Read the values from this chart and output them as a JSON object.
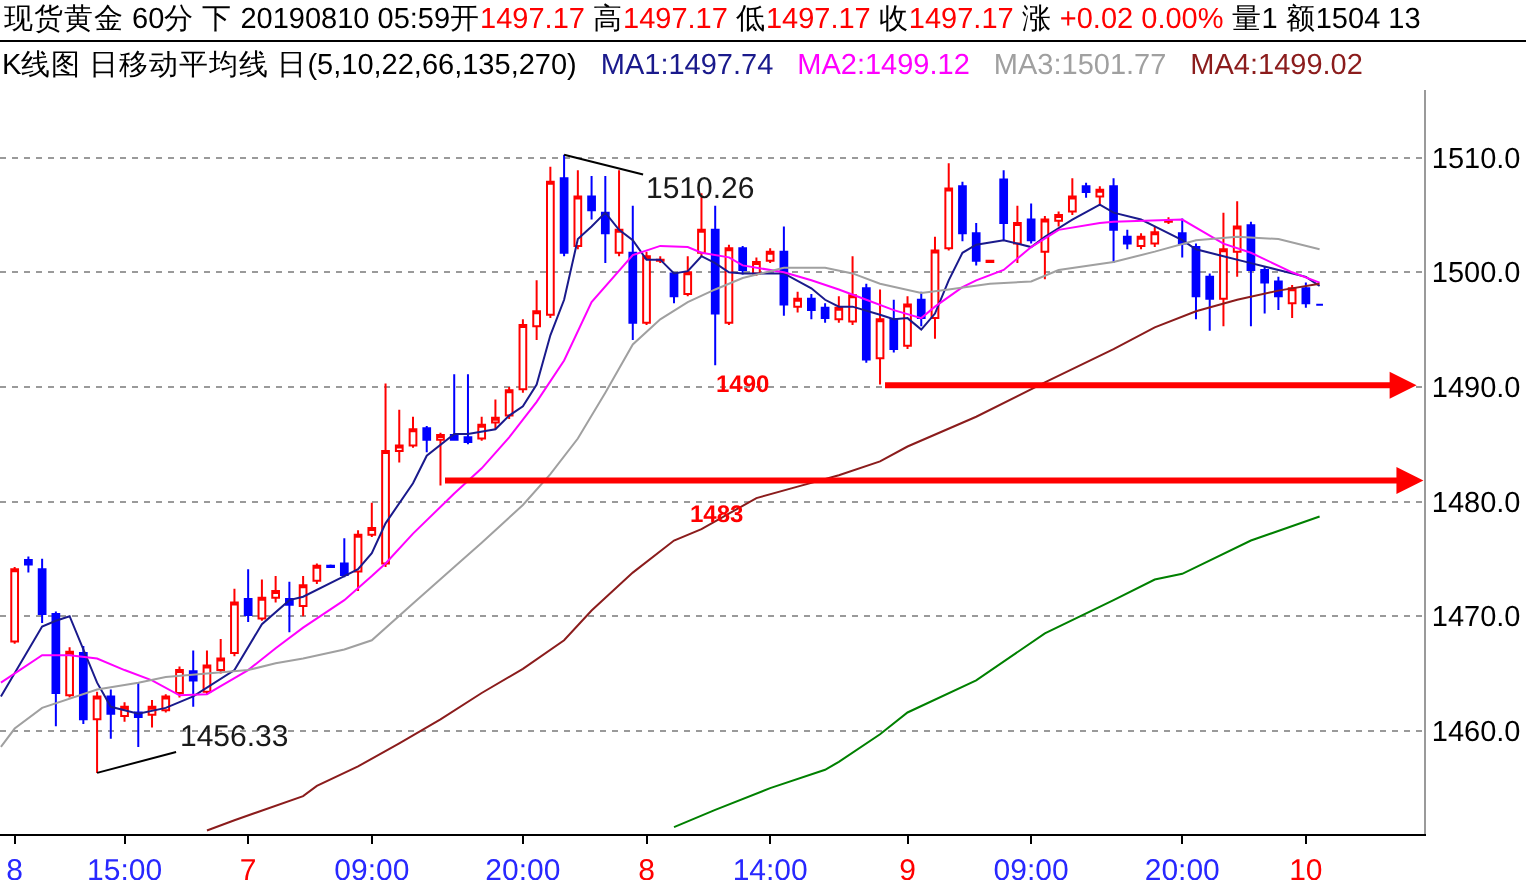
{
  "chart_data": {
    "type": "candlestick",
    "title": "现货黄金 60分 下 20190810 05:59开1497.17 高1497.17 低1497.17 收1497.17 涨 +0.02 0.00% 量1 额1504 13",
    "subtitle": "K线图 日移动平均线 日(5,10,22,66,135,270)",
    "x": [
      "2019-08-06T07:00",
      "2019-08-06T08:00",
      "2019-08-06T09:00",
      "2019-08-06T10:00",
      "2019-08-06T11:00",
      "2019-08-06T12:00",
      "2019-08-06T13:00",
      "2019-08-06T14:00",
      "2019-08-06T15:00",
      "2019-08-06T16:00",
      "2019-08-06T17:00",
      "2019-08-06T18:00",
      "2019-08-06T19:00",
      "2019-08-06T20:00",
      "2019-08-06T21:00",
      "2019-08-06T22:00",
      "2019-08-06T23:00",
      "2019-08-07T00:00",
      "2019-08-07T01:00",
      "2019-08-07T02:00",
      "2019-08-07T03:00",
      "2019-08-07T04:00",
      "2019-08-07T05:00",
      "2019-08-07T06:00",
      "2019-08-07T07:00",
      "2019-08-07T08:00",
      "2019-08-07T09:00",
      "2019-08-07T10:00",
      "2019-08-07T11:00",
      "2019-08-07T12:00",
      "2019-08-07T13:00",
      "2019-08-07T14:00",
      "2019-08-07T15:00",
      "2019-08-07T16:00",
      "2019-08-07T17:00",
      "2019-08-07T18:00",
      "2019-08-07T19:00",
      "2019-08-07T20:00",
      "2019-08-07T21:00",
      "2019-08-07T22:00",
      "2019-08-07T23:00",
      "2019-08-08T00:00",
      "2019-08-08T01:00",
      "2019-08-08T02:00",
      "2019-08-08T03:00",
      "2019-08-08T04:00",
      "2019-08-08T05:00",
      "2019-08-08T06:00",
      "2019-08-08T07:00",
      "2019-08-08T08:00",
      "2019-08-08T09:00",
      "2019-08-08T10:00",
      "2019-08-08T11:00",
      "2019-08-08T12:00",
      "2019-08-08T13:00",
      "2019-08-08T14:00",
      "2019-08-08T15:00",
      "2019-08-08T16:00",
      "2019-08-08T17:00",
      "2019-08-08T18:00",
      "2019-08-08T19:00",
      "2019-08-08T20:00",
      "2019-08-08T21:00",
      "2019-08-08T22:00",
      "2019-08-08T23:00",
      "2019-08-09T00:00",
      "2019-08-09T01:00",
      "2019-08-09T02:00",
      "2019-08-09T03:00",
      "2019-08-09T04:00",
      "2019-08-09T05:00",
      "2019-08-09T06:00",
      "2019-08-09T07:00",
      "2019-08-09T08:00",
      "2019-08-09T09:00",
      "2019-08-09T10:00",
      "2019-08-09T11:00",
      "2019-08-09T12:00",
      "2019-08-09T13:00",
      "2019-08-09T14:00",
      "2019-08-09T15:00",
      "2019-08-09T16:00",
      "2019-08-09T17:00",
      "2019-08-09T18:00",
      "2019-08-09T19:00",
      "2019-08-09T20:00",
      "2019-08-09T21:00",
      "2019-08-09T22:00",
      "2019-08-09T23:00",
      "2019-08-10T00:00",
      "2019-08-10T01:00",
      "2019-08-10T02:00",
      "2019-08-10T03:00",
      "2019-08-10T04:00",
      "2019-08-10T05:00",
      "2019-08-10T06:00"
    ],
    "ohlc": [
      [
        1467.8,
        1474.3,
        1467.6,
        1474.1
      ],
      [
        1474.9,
        1475.2,
        1473.8,
        1474.5
      ],
      [
        1474.1,
        1475.0,
        1469.4,
        1470.2
      ],
      [
        1470.2,
        1470.4,
        1460.4,
        1463.3
      ],
      [
        1463.1,
        1467.3,
        1462.9,
        1466.9
      ],
      [
        1466.8,
        1467.4,
        1460.6,
        1461.0
      ],
      [
        1461.0,
        1463.4,
        1456.33,
        1463.0
      ],
      [
        1463.0,
        1463.6,
        1459.3,
        1461.5
      ],
      [
        1461.3,
        1462.5,
        1460.8,
        1462.1
      ],
      [
        1461.6,
        1464.2,
        1458.6,
        1461.2
      ],
      [
        1461.4,
        1462.7,
        1460.3,
        1462.1
      ],
      [
        1461.8,
        1463.2,
        1461.6,
        1463.0
      ],
      [
        1463.3,
        1465.6,
        1462.9,
        1465.3
      ],
      [
        1465.2,
        1467.0,
        1462.1,
        1464.4
      ],
      [
        1463.4,
        1467.0,
        1463.2,
        1465.7
      ],
      [
        1465.3,
        1468.0,
        1465.0,
        1466.3
      ],
      [
        1466.8,
        1472.4,
        1466.5,
        1471.2
      ],
      [
        1471.5,
        1474.1,
        1469.5,
        1470.1
      ],
      [
        1469.8,
        1473.2,
        1469.6,
        1471.6
      ],
      [
        1471.6,
        1473.5,
        1471.2,
        1472.2
      ],
      [
        1471.5,
        1473.0,
        1468.6,
        1471.0
      ],
      [
        1470.9,
        1473.5,
        1470.0,
        1472.7
      ],
      [
        1473.1,
        1474.6,
        1472.8,
        1474.4
      ],
      [
        1474.4,
        1474.5,
        1474.2,
        1474.3
      ],
      [
        1474.6,
        1476.8,
        1473.4,
        1473.6
      ],
      [
        1473.9,
        1477.5,
        1472.2,
        1477.1
      ],
      [
        1477.1,
        1479.9,
        1476.9,
        1477.7
      ],
      [
        1474.6,
        1490.3,
        1474.3,
        1484.4
      ],
      [
        1484.4,
        1488.0,
        1483.4,
        1484.9
      ],
      [
        1484.9,
        1487.4,
        1484.7,
        1486.3
      ],
      [
        1486.4,
        1486.6,
        1484.3,
        1485.4
      ],
      [
        1485.4,
        1486.0,
        1481.4,
        1485.8
      ],
      [
        1485.8,
        1491.1,
        1485.3,
        1485.4
      ],
      [
        1485.6,
        1491.1,
        1485.0,
        1485.2
      ],
      [
        1485.5,
        1487.4,
        1485.3,
        1486.7
      ],
      [
        1486.9,
        1488.9,
        1486.3,
        1487.3
      ],
      [
        1487.5,
        1490.0,
        1487.2,
        1489.7
      ],
      [
        1489.8,
        1495.9,
        1489.5,
        1495.4
      ],
      [
        1495.3,
        1499.3,
        1494.1,
        1496.6
      ],
      [
        1496.3,
        1509.2,
        1496.0,
        1507.9
      ],
      [
        1508.2,
        1510.26,
        1501.4,
        1501.7
      ],
      [
        1502.3,
        1508.9,
        1502.0,
        1506.6
      ],
      [
        1506.6,
        1508.4,
        1504.6,
        1505.4
      ],
      [
        1505.2,
        1508.4,
        1500.8,
        1503.4
      ],
      [
        1501.7,
        1508.9,
        1501.4,
        1503.7
      ],
      [
        1501.7,
        1505.8,
        1494.1,
        1495.6
      ],
      [
        1495.6,
        1501.8,
        1495.4,
        1501.4
      ],
      [
        1501.0,
        1501.4,
        1500.8,
        1501.1
      ],
      [
        1499.9,
        1500.0,
        1497.3,
        1497.9
      ],
      [
        1498.1,
        1501.4,
        1497.9,
        1500.0
      ],
      [
        1501.7,
        1506.9,
        1501.4,
        1503.7
      ],
      [
        1503.7,
        1505.8,
        1491.9,
        1496.4
      ],
      [
        1495.6,
        1502.4,
        1495.4,
        1502.1
      ],
      [
        1502.1,
        1502.3,
        1499.8,
        1500.2
      ],
      [
        1499.9,
        1501.3,
        1499.7,
        1500.9
      ],
      [
        1501.0,
        1502.1,
        1500.8,
        1501.8
      ],
      [
        1501.8,
        1504.0,
        1496.2,
        1497.2
      ],
      [
        1497.0,
        1498.3,
        1496.5,
        1497.7
      ],
      [
        1497.7,
        1498.1,
        1495.9,
        1496.7
      ],
      [
        1496.9,
        1497.3,
        1495.6,
        1496.0
      ],
      [
        1495.9,
        1497.9,
        1495.6,
        1496.9
      ],
      [
        1495.7,
        1501.4,
        1495.4,
        1498.0
      ],
      [
        1498.6,
        1499.0,
        1492.1,
        1492.4
      ],
      [
        1492.5,
        1498.5,
        1490.2,
        1495.9
      ],
      [
        1495.9,
        1497.6,
        1493.0,
        1493.3
      ],
      [
        1493.6,
        1497.9,
        1493.3,
        1497.2
      ],
      [
        1497.6,
        1498.3,
        1495.3,
        1496.0
      ],
      [
        1496.0,
        1503.1,
        1494.2,
        1501.9
      ],
      [
        1502.1,
        1509.5,
        1501.9,
        1507.3
      ],
      [
        1507.5,
        1507.9,
        1502.7,
        1503.4
      ],
      [
        1503.4,
        1504.3,
        1500.6,
        1501.0
      ],
      [
        1500.9,
        1501.1,
        1500.8,
        1501.0
      ],
      [
        1508.1,
        1508.9,
        1502.8,
        1504.3
      ],
      [
        1502.5,
        1505.8,
        1500.8,
        1504.3
      ],
      [
        1504.6,
        1506.0,
        1502.5,
        1502.8
      ],
      [
        1501.8,
        1504.9,
        1499.4,
        1504.6
      ],
      [
        1504.5,
        1505.3,
        1504.0,
        1505.0
      ],
      [
        1505.3,
        1508.2,
        1505.0,
        1506.6
      ],
      [
        1507.5,
        1507.8,
        1506.5,
        1507.0
      ],
      [
        1506.6,
        1507.5,
        1505.8,
        1507.2
      ],
      [
        1507.5,
        1508.2,
        1500.8,
        1503.7
      ],
      [
        1503.1,
        1503.7,
        1502.0,
        1502.5
      ],
      [
        1502.3,
        1503.4,
        1502.0,
        1503.1
      ],
      [
        1502.5,
        1504.0,
        1502.2,
        1503.5
      ],
      [
        1504.4,
        1504.8,
        1504.2,
        1504.5
      ],
      [
        1503.4,
        1504.7,
        1501.3,
        1502.5
      ],
      [
        1502.2,
        1502.5,
        1495.9,
        1497.9
      ],
      [
        1499.6,
        1499.9,
        1494.9,
        1497.7
      ],
      [
        1497.7,
        1505.2,
        1495.3,
        1502.0
      ],
      [
        1501.8,
        1506.2,
        1499.6,
        1504.0
      ],
      [
        1504.1,
        1504.4,
        1495.3,
        1500.2
      ],
      [
        1500.2,
        1500.5,
        1496.4,
        1499.1
      ],
      [
        1499.2,
        1499.6,
        1496.7,
        1497.9
      ],
      [
        1497.3,
        1498.9,
        1496.0,
        1498.6
      ],
      [
        1498.6,
        1499.1,
        1496.9,
        1497.3
      ],
      [
        1497.17,
        1497.17,
        1497.17,
        1497.17
      ]
    ],
    "colors": [
      "#ff0000",
      "#0000ff",
      "#0000ff",
      "#0000ff",
      "#ff0000",
      "#0000ff",
      "#ff0000",
      "#0000ff",
      "#ff0000",
      "#0000ff",
      "#ff0000",
      "#ff0000",
      "#ff0000",
      "#0000ff",
      "#ff0000",
      "#ff0000",
      "#ff0000",
      "#0000ff",
      "#ff0000",
      "#ff0000",
      "#0000ff",
      "#ff0000",
      "#ff0000",
      "#0000ff",
      "#0000ff",
      "#ff0000",
      "#ff0000",
      "#ff0000",
      "#ff0000",
      "#ff0000",
      "#0000ff",
      "#ff0000",
      "#0000ff",
      "#0000ff",
      "#ff0000",
      "#ff0000",
      "#ff0000",
      "#ff0000",
      "#ff0000",
      "#ff0000",
      "#0000ff",
      "#ff0000",
      "#0000ff",
      "#0000ff",
      "#ff0000",
      "#0000ff",
      "#ff0000",
      "#ff0000",
      "#0000ff",
      "#ff0000",
      "#ff0000",
      "#0000ff",
      "#ff0000",
      "#0000ff",
      "#ff0000",
      "#ff0000",
      "#0000ff",
      "#ff0000",
      "#0000ff",
      "#0000ff",
      "#ff0000",
      "#ff0000",
      "#0000ff",
      "#ff0000",
      "#0000ff",
      "#ff0000",
      "#0000ff",
      "#ff0000",
      "#ff0000",
      "#0000ff",
      "#0000ff",
      "#ff0000",
      "#0000ff",
      "#ff0000",
      "#0000ff",
      "#ff0000",
      "#ff0000",
      "#ff0000",
      "#0000ff",
      "#ff0000",
      "#0000ff",
      "#0000ff",
      "#ff0000",
      "#ff0000",
      "#ff0000",
      "#0000ff",
      "#0000ff",
      "#0000ff",
      "#ff0000",
      "#ff0000",
      "#0000ff",
      "#0000ff",
      "#0000ff",
      "#ff0000",
      "#0000ff",
      "#0000ff"
    ],
    "series": [
      {
        "type": "line",
        "name": "MA1:1497.74",
        "color": "#1a1a8c",
        "x": [
          "2019-08-06T06:00",
          "2019-08-06T09:00",
          "2019-08-06T10:00",
          "2019-08-06T11:00",
          "2019-08-06T13:00",
          "2019-08-06T14:00",
          "2019-08-06T16:00",
          "2019-08-06T18:00",
          "2019-08-06T20:00",
          "2019-08-06T23:00",
          "2019-08-07T01:00",
          "2019-08-07T03:00",
          "2019-08-07T04:00",
          "2019-08-07T07:00",
          "2019-08-07T08:00",
          "2019-08-07T09:00",
          "2019-08-07T10:00",
          "2019-08-07T12:00",
          "2019-08-07T13:00",
          "2019-08-07T15:00",
          "2019-08-07T16:00",
          "2019-08-07T18:00",
          "2019-08-07T19:00",
          "2019-08-07T20:00",
          "2019-08-07T21:00",
          "2019-08-07T22:00",
          "2019-08-07T23:00",
          "2019-08-08T00:00",
          "2019-08-08T01:00",
          "2019-08-08T02:00",
          "2019-08-08T03:00",
          "2019-08-08T04:00",
          "2019-08-08T05:00",
          "2019-08-08T06:00",
          "2019-08-08T07:00",
          "2019-08-08T08:00",
          "2019-08-08T09:00",
          "2019-08-08T10:00",
          "2019-08-08T11:00",
          "2019-08-08T12:00",
          "2019-08-08T15:00",
          "2019-08-08T17:00",
          "2019-08-08T18:00",
          "2019-08-08T19:00",
          "2019-08-08T20:00",
          "2019-08-08T22:00",
          "2019-08-08T23:00",
          "2019-08-09T00:00",
          "2019-08-09T01:00",
          "2019-08-09T02:00",
          "2019-08-09T03:00",
          "2019-08-09T04:00",
          "2019-08-09T05:00",
          "2019-08-09T07:00",
          "2019-08-09T09:00",
          "2019-08-09T10:00",
          "2019-08-09T12:00",
          "2019-08-09T14:00",
          "2019-08-09T15:00",
          "2019-08-09T17:00",
          "2019-08-09T18:00",
          "2019-08-09T20:00",
          "2019-08-09T21:00",
          "2019-08-09T23:00",
          "2019-08-10T01:00",
          "2019-08-10T03:00",
          "2019-08-10T05:00",
          "2019-08-10T06:00"
        ],
        "values": [
          1463.0,
          1469.1,
          1469.6,
          1470.0,
          1464.2,
          1462.1,
          1461.5,
          1462.0,
          1463.0,
          1465.3,
          1469.3,
          1471.4,
          1471.7,
          1473.5,
          1474.1,
          1475.5,
          1478.1,
          1481.6,
          1484.0,
          1485.9,
          1485.9,
          1486.3,
          1487.5,
          1488.3,
          1490.2,
          1494.5,
          1497.6,
          1502.9,
          1504.0,
          1505.2,
          1503.7,
          1502.8,
          1501.1,
          1501.1,
          1499.9,
          1500.1,
          1501.4,
          1500.8,
          1500.0,
          1499.9,
          1499.9,
          1498.6,
          1497.6,
          1497.0,
          1497.0,
          1496.3,
          1495.9,
          1496.0,
          1495.0,
          1496.4,
          1499.3,
          1501.7,
          1502.4,
          1502.8,
          1502.2,
          1503.1,
          1504.6,
          1505.9,
          1505.2,
          1504.6,
          1504.0,
          1502.8,
          1502.0,
          1501.4,
          1500.8,
          1500.2,
          1499.6,
          1498.8
        ]
      },
      {
        "type": "line",
        "name": "MA2:1499.12",
        "color": "#ff00ff",
        "x": [
          "2019-08-06T06:00",
          "2019-08-06T09:00",
          "2019-08-06T11:00",
          "2019-08-06T13:00",
          "2019-08-06T15:00",
          "2019-08-06T17:00",
          "2019-08-06T19:00",
          "2019-08-06T21:00",
          "2019-08-06T22:00",
          "2019-08-07T00:00",
          "2019-08-07T02:00",
          "2019-08-07T04:00",
          "2019-08-07T07:00",
          "2019-08-07T09:00",
          "2019-08-07T10:00",
          "2019-08-07T12:00",
          "2019-08-07T15:00",
          "2019-08-07T17:00",
          "2019-08-07T19:00",
          "2019-08-07T21:00",
          "2019-08-07T23:00",
          "2019-08-08T01:00",
          "2019-08-08T04:00",
          "2019-08-08T06:00",
          "2019-08-08T08:00",
          "2019-08-08T09:00",
          "2019-08-08T11:00",
          "2019-08-08T12:00",
          "2019-08-08T15:00",
          "2019-08-08T17:00",
          "2019-08-08T19:00",
          "2019-08-08T21:00",
          "2019-08-08T23:00",
          "2019-08-09T01:00",
          "2019-08-09T02:00",
          "2019-08-09T04:00",
          "2019-08-09T05:00",
          "2019-08-09T07:00",
          "2019-08-09T09:00",
          "2019-08-09T11:00",
          "2019-08-09T14:00",
          "2019-08-09T15:00",
          "2019-08-09T20:00",
          "2019-08-09T23:00",
          "2019-08-10T01:00",
          "2019-08-10T04:00",
          "2019-08-10T06:00"
        ],
        "values": [
          1464.2,
          1466.6,
          1466.6,
          1466.3,
          1465.3,
          1464.4,
          1463.1,
          1463.2,
          1463.9,
          1465.3,
          1467.2,
          1469.0,
          1471.4,
          1473.5,
          1474.6,
          1477.2,
          1480.7,
          1482.9,
          1485.6,
          1488.7,
          1492.3,
          1497.4,
          1501.5,
          1502.3,
          1502.2,
          1501.7,
          1501.3,
          1500.6,
          1500.0,
          1499.3,
          1498.5,
          1497.6,
          1496.7,
          1496.0,
          1497.0,
          1498.7,
          1499.3,
          1500.2,
          1502.2,
          1503.7,
          1504.3,
          1504.4,
          1504.6,
          1502.5,
          1501.7,
          1500.0,
          1499.1
        ]
      },
      {
        "type": "line",
        "name": "MA3:1501.77",
        "color": "#a0a0a0",
        "x": [
          "2019-08-06T06:00",
          "2019-08-06T07:00",
          "2019-08-06T09:00",
          "2019-08-06T13:00",
          "2019-08-06T16:00",
          "2019-08-06T18:00",
          "2019-08-06T21:00",
          "2019-08-07T00:00",
          "2019-08-07T02:00",
          "2019-08-07T04:00",
          "2019-08-07T07:00",
          "2019-08-07T09:00",
          "2019-08-07T12:00",
          "2019-08-07T15:00",
          "2019-08-07T17:00",
          "2019-08-07T20:00",
          "2019-08-07T22:00",
          "2019-08-08T00:00",
          "2019-08-08T02:00",
          "2019-08-08T04:00",
          "2019-08-08T06:00",
          "2019-08-08T08:00",
          "2019-08-08T10:00",
          "2019-08-08T12:00",
          "2019-08-08T15:00",
          "2019-08-08T18:00",
          "2019-08-08T20:00",
          "2019-08-08T22:00",
          "2019-08-09T01:00",
          "2019-08-09T03:00",
          "2019-08-09T06:00",
          "2019-08-09T09:00",
          "2019-08-09T11:00",
          "2019-08-09T15:00",
          "2019-08-09T18:00",
          "2019-08-09T21:00",
          "2019-08-10T00:00",
          "2019-08-10T03:00",
          "2019-08-10T06:00"
        ],
        "values": [
          1458.6,
          1460.2,
          1462.0,
          1463.6,
          1464.2,
          1464.7,
          1465.0,
          1465.3,
          1465.9,
          1466.3,
          1467.1,
          1467.9,
          1471.1,
          1474.3,
          1476.4,
          1479.7,
          1482.4,
          1485.5,
          1489.5,
          1493.7,
          1495.9,
          1497.4,
          1498.5,
          1499.5,
          1500.4,
          1500.4,
          1499.9,
          1499.0,
          1498.2,
          1498.5,
          1499.0,
          1499.2,
          1500.2,
          1500.9,
          1501.8,
          1502.8,
          1503.1,
          1502.9,
          1502.0
        ]
      },
      {
        "type": "line",
        "name": "MA4:1499.02",
        "color": "#8b1c1c",
        "x": [
          "2019-08-06T21:00",
          "2019-08-06T23:00",
          "2019-08-07T04:00",
          "2019-08-07T05:00",
          "2019-08-07T08:00",
          "2019-08-07T11:00",
          "2019-08-07T14:00",
          "2019-08-07T17:00",
          "2019-08-07T20:00",
          "2019-08-07T23:00",
          "2019-08-08T01:00",
          "2019-08-08T04:00",
          "2019-08-08T07:00",
          "2019-08-08T09:00",
          "2019-08-08T13:00",
          "2019-08-08T16:00",
          "2019-08-08T19:00",
          "2019-08-08T22:00",
          "2019-08-09T00:00",
          "2019-08-09T05:00",
          "2019-08-09T10:00",
          "2019-08-09T15:00",
          "2019-08-09T18:00",
          "2019-08-09T21:00",
          "2019-08-10T00:00",
          "2019-08-10T03:00",
          "2019-08-10T06:00"
        ],
        "values": [
          1451.3,
          1452.2,
          1454.3,
          1455.2,
          1456.9,
          1458.9,
          1461.0,
          1463.3,
          1465.4,
          1467.9,
          1470.5,
          1473.8,
          1476.6,
          1477.6,
          1480.3,
          1481.3,
          1482.3,
          1483.5,
          1484.8,
          1487.4,
          1490.4,
          1493.3,
          1495.2,
          1496.6,
          1497.6,
          1498.4,
          1499.0
        ]
      },
      {
        "type": "line",
        "color": "#008000",
        "x": [
          "2019-08-08T07:00",
          "2019-08-08T10:00",
          "2019-08-08T14:00",
          "2019-08-08T18:00",
          "2019-08-08T19:00",
          "2019-08-08T22:00",
          "2019-08-09T00:00",
          "2019-08-09T05:00",
          "2019-08-09T10:00",
          "2019-08-09T15:00",
          "2019-08-09T18:00",
          "2019-08-09T20:00",
          "2019-08-10T01:00",
          "2019-08-10T06:00"
        ],
        "values": [
          1451.6,
          1453.1,
          1455.0,
          1456.6,
          1457.3,
          1459.7,
          1461.6,
          1464.4,
          1468.5,
          1471.4,
          1473.2,
          1473.7,
          1476.6,
          1478.7
        ]
      }
    ],
    "annotations": [
      {
        "text": "1510.26",
        "x": "2019-08-07T23:00",
        "y": 1510.26
      },
      {
        "text": "1456.33",
        "x": "2019-08-06T13:00",
        "y": 1456.33
      },
      "1490",
      "1483"
    ],
    "xlim": [
      "2019-08-06T05:56",
      "2019-08-10T13:36"
    ],
    "ylim": [
      1451.0,
      1515.9
    ],
    "xticks": [
      {
        "value": "2019-08-06T07:00",
        "label": "8"
      },
      {
        "value": "2019-08-06T15:00",
        "label": "15:00"
      },
      {
        "value": "2019-08-07T00:00",
        "label": "7"
      },
      {
        "value": "2019-08-07T09:00",
        "label": "09:00"
      },
      {
        "value": "2019-08-07T20:00",
        "label": "20:00"
      },
      {
        "value": "2019-08-08T05:00",
        "label": "8"
      },
      {
        "value": "2019-08-08T14:00",
        "label": "14:00"
      },
      {
        "value": "2019-08-09T00:00",
        "label": "9"
      },
      {
        "value": "2019-08-09T09:00",
        "label": "09:00"
      },
      {
        "value": "2019-08-09T20:00",
        "label": "20:00"
      },
      {
        "value": "2019-08-10T05:00",
        "label": "10"
      }
    ],
    "yticks": [
      {
        "value": 1460,
        "label": "1460.0"
      },
      {
        "value": 1470,
        "label": "1470.0"
      },
      {
        "value": 1480,
        "label": "1480.0"
      },
      {
        "value": 1490,
        "label": "1490.0"
      },
      {
        "value": 1500,
        "label": "1500.0"
      },
      {
        "value": 1510,
        "label": "1510.0"
      }
    ],
    "grid": "y",
    "legend": "top"
  }
}
